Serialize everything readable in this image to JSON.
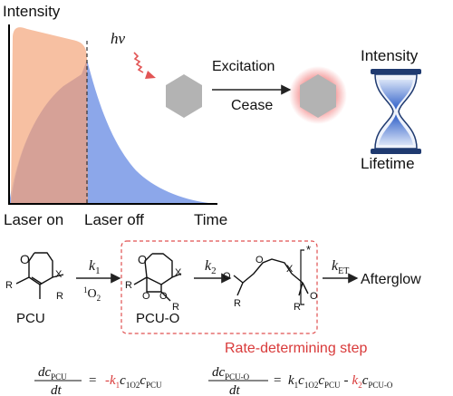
{
  "plot": {
    "y_label": "Intensity",
    "x_label": "Time",
    "laser_on": "Laser on",
    "laser_off": "Laser off"
  },
  "excitation": {
    "photon": "hv",
    "line1": "Excitation",
    "line2": "Cease"
  },
  "hourglass": {
    "top": "Intensity",
    "bottom": "Lifetime"
  },
  "scheme": {
    "o_atom": "O",
    "x_atom": "X",
    "r_group": "R",
    "pcu": "PCU",
    "pcu_o": "PCU-O",
    "k1_base": "k",
    "k1_sub": "1",
    "singlet_o2_sup": "1",
    "singlet_o2_base": "O",
    "singlet_o2_sub": "2",
    "k2_base": "k",
    "k2_sub": "2",
    "star": "*",
    "ket_base": "k",
    "ket_sub": "ET",
    "afterglow": "Afterglow",
    "rds": "Rate-determining step"
  },
  "equations": {
    "d": "dc",
    "dt": "dt",
    "sub_pcu": "PCU",
    "sub_pcuo": "PCU-O",
    "sub_1o2": "1O2",
    "equals": "=",
    "minus": "-",
    "k": "k",
    "c": "c",
    "one": "1",
    "two": "2"
  },
  "colors": {
    "orange_fill": "#f6b592",
    "blue_fill": "#7f9de8",
    "hexagon": "#b3b3b3",
    "glow": "#f07070",
    "red_text": "#d93a3a",
    "box_dash": "#e05050",
    "hourglass_sand": "#3a6bd6",
    "frame": "#1f3a70"
  }
}
